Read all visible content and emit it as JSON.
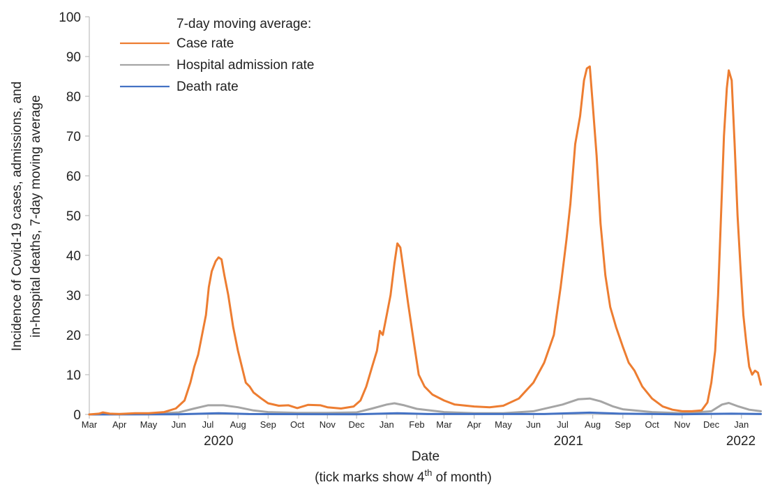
{
  "chart_data": {
    "type": "line",
    "ylabel": [
      "Incidence of Covid-19 cases, admissions, and",
      "in-hospital deaths, 7-day moving average"
    ],
    "xlabel": "Date",
    "xlabel_note_pre": "(tick marks show 4",
    "xlabel_note_sup": "th",
    "xlabel_note_post": " of month)",
    "ylim": [
      0,
      100
    ],
    "yticks": [
      0,
      10,
      20,
      30,
      40,
      50,
      60,
      70,
      80,
      90,
      100
    ],
    "xlim": [
      "2020-03-04",
      "2022-01-25"
    ],
    "month_ticks": [
      {
        "label": "Mar",
        "date": "2020-03-04"
      },
      {
        "label": "Apr",
        "date": "2020-04-04"
      },
      {
        "label": "May",
        "date": "2020-05-04"
      },
      {
        "label": "Jun",
        "date": "2020-06-04"
      },
      {
        "label": "Jul",
        "date": "2020-07-04"
      },
      {
        "label": "Aug",
        "date": "2020-08-04"
      },
      {
        "label": "Sep",
        "date": "2020-09-04"
      },
      {
        "label": "Oct",
        "date": "2020-10-04"
      },
      {
        "label": "Nov",
        "date": "2020-11-04"
      },
      {
        "label": "Dec",
        "date": "2020-12-04"
      },
      {
        "label": "Jan",
        "date": "2021-01-04"
      },
      {
        "label": "Feb",
        "date": "2021-02-04"
      },
      {
        "label": "Mar",
        "date": "2021-03-04"
      },
      {
        "label": "Apr",
        "date": "2021-04-04"
      },
      {
        "label": "May",
        "date": "2021-05-04"
      },
      {
        "label": "Jun",
        "date": "2021-06-04"
      },
      {
        "label": "Jul",
        "date": "2021-07-04"
      },
      {
        "label": "Aug",
        "date": "2021-08-04"
      },
      {
        "label": "Sep",
        "date": "2021-09-04"
      },
      {
        "label": "Oct",
        "date": "2021-10-04"
      },
      {
        "label": "Nov",
        "date": "2021-11-04"
      },
      {
        "label": "Dec",
        "date": "2021-12-04"
      },
      {
        "label": "Jan",
        "date": "2022-01-04"
      }
    ],
    "year_labels": [
      {
        "label": "2020",
        "date": "2020-07-15"
      },
      {
        "label": "2021",
        "date": "2021-07-10"
      },
      {
        "label": "2022",
        "date": "2022-01-10"
      }
    ],
    "legend": {
      "title": "7-day moving average:",
      "placement": "top-left"
    },
    "grid": false,
    "series": [
      {
        "name": "Case rate",
        "color": "#ED7D31",
        "points": [
          [
            "2020-03-04",
            0.0
          ],
          [
            "2020-03-14",
            0.2
          ],
          [
            "2020-03-18",
            0.5
          ],
          [
            "2020-03-25",
            0.2
          ],
          [
            "2020-04-04",
            0.1
          ],
          [
            "2020-04-20",
            0.3
          ],
          [
            "2020-05-04",
            0.3
          ],
          [
            "2020-05-20",
            0.6
          ],
          [
            "2020-06-01",
            1.5
          ],
          [
            "2020-06-10",
            3.5
          ],
          [
            "2020-06-16",
            8.0
          ],
          [
            "2020-06-20",
            12.0
          ],
          [
            "2020-06-24",
            15.0
          ],
          [
            "2020-06-28",
            20.0
          ],
          [
            "2020-07-02",
            25.0
          ],
          [
            "2020-07-05",
            32.0
          ],
          [
            "2020-07-08",
            36.0
          ],
          [
            "2020-07-12",
            38.5
          ],
          [
            "2020-07-15",
            39.5
          ],
          [
            "2020-07-18",
            39.0
          ],
          [
            "2020-07-21",
            35.0
          ],
          [
            "2020-07-25",
            30.0
          ],
          [
            "2020-07-30",
            22.0
          ],
          [
            "2020-08-04",
            16.0
          ],
          [
            "2020-08-08",
            12.0
          ],
          [
            "2020-08-12",
            8.0
          ],
          [
            "2020-08-16",
            7.0
          ],
          [
            "2020-08-20",
            5.5
          ],
          [
            "2020-08-28",
            4.0
          ],
          [
            "2020-09-04",
            2.8
          ],
          [
            "2020-09-15",
            2.2
          ],
          [
            "2020-09-25",
            2.3
          ],
          [
            "2020-10-04",
            1.6
          ],
          [
            "2020-10-15",
            2.4
          ],
          [
            "2020-10-28",
            2.3
          ],
          [
            "2020-11-04",
            1.8
          ],
          [
            "2020-11-18",
            1.5
          ],
          [
            "2020-12-01",
            2.0
          ],
          [
            "2020-12-08",
            3.5
          ],
          [
            "2020-12-14",
            7.0
          ],
          [
            "2020-12-20",
            12.0
          ],
          [
            "2020-12-25",
            16.0
          ],
          [
            "2020-12-28",
            21.0
          ],
          [
            "2020-12-31",
            20.0
          ],
          [
            "2021-01-04",
            25.0
          ],
          [
            "2021-01-08",
            30.0
          ],
          [
            "2021-01-12",
            38.0
          ],
          [
            "2021-01-15",
            43.0
          ],
          [
            "2021-01-18",
            42.0
          ],
          [
            "2021-01-22",
            35.0
          ],
          [
            "2021-01-26",
            28.0
          ],
          [
            "2021-02-01",
            18.0
          ],
          [
            "2021-02-06",
            10.0
          ],
          [
            "2021-02-12",
            7.0
          ],
          [
            "2021-02-20",
            5.0
          ],
          [
            "2021-03-04",
            3.5
          ],
          [
            "2021-03-15",
            2.5
          ],
          [
            "2021-04-04",
            2.0
          ],
          [
            "2021-04-20",
            1.8
          ],
          [
            "2021-05-04",
            2.2
          ],
          [
            "2021-05-20",
            4.0
          ],
          [
            "2021-06-04",
            8.0
          ],
          [
            "2021-06-15",
            13.0
          ],
          [
            "2021-06-25",
            20.0
          ],
          [
            "2021-07-02",
            32.0
          ],
          [
            "2021-07-08",
            44.0
          ],
          [
            "2021-07-12",
            53.0
          ],
          [
            "2021-07-17",
            68.0
          ],
          [
            "2021-07-22",
            75.0
          ],
          [
            "2021-07-26",
            84.0
          ],
          [
            "2021-07-29",
            87.0
          ],
          [
            "2021-08-01",
            87.5
          ],
          [
            "2021-08-04",
            78.0
          ],
          [
            "2021-08-08",
            65.0
          ],
          [
            "2021-08-12",
            48.0
          ],
          [
            "2021-08-17",
            35.0
          ],
          [
            "2021-08-22",
            27.0
          ],
          [
            "2021-08-28",
            22.0
          ],
          [
            "2021-09-04",
            17.0
          ],
          [
            "2021-09-10",
            13.0
          ],
          [
            "2021-09-16",
            11.0
          ],
          [
            "2021-09-24",
            7.0
          ],
          [
            "2021-10-04",
            4.0
          ],
          [
            "2021-10-15",
            2.0
          ],
          [
            "2021-10-25",
            1.2
          ],
          [
            "2021-11-04",
            0.8
          ],
          [
            "2021-11-14",
            0.8
          ],
          [
            "2021-11-24",
            1.0
          ],
          [
            "2021-11-30",
            3.0
          ],
          [
            "2021-12-04",
            8.0
          ],
          [
            "2021-12-08",
            16.0
          ],
          [
            "2021-12-11",
            30.0
          ],
          [
            "2021-12-14",
            50.0
          ],
          [
            "2021-12-17",
            70.0
          ],
          [
            "2021-12-20",
            82.0
          ],
          [
            "2021-12-22",
            86.5
          ],
          [
            "2021-12-25",
            84.0
          ],
          [
            "2021-12-28",
            68.0
          ],
          [
            "2021-12-31",
            50.0
          ],
          [
            "2022-01-03",
            37.0
          ],
          [
            "2022-01-06",
            25.0
          ],
          [
            "2022-01-09",
            18.0
          ],
          [
            "2022-01-12",
            12.0
          ],
          [
            "2022-01-15",
            10.0
          ],
          [
            "2022-01-18",
            11.0
          ],
          [
            "2022-01-21",
            10.5
          ],
          [
            "2022-01-24",
            7.5
          ]
        ]
      },
      {
        "name": "Hospital admission rate",
        "color": "#A5A5A5",
        "points": [
          [
            "2020-03-04",
            0.0
          ],
          [
            "2020-04-04",
            0.1
          ],
          [
            "2020-05-04",
            0.1
          ],
          [
            "2020-06-04",
            0.5
          ],
          [
            "2020-06-20",
            1.5
          ],
          [
            "2020-07-04",
            2.3
          ],
          [
            "2020-07-20",
            2.3
          ],
          [
            "2020-08-04",
            1.8
          ],
          [
            "2020-08-20",
            1.0
          ],
          [
            "2020-09-04",
            0.6
          ],
          [
            "2020-10-04",
            0.4
          ],
          [
            "2020-11-04",
            0.4
          ],
          [
            "2020-12-04",
            0.5
          ],
          [
            "2020-12-20",
            1.5
          ],
          [
            "2021-01-04",
            2.5
          ],
          [
            "2021-01-12",
            2.8
          ],
          [
            "2021-01-22",
            2.3
          ],
          [
            "2021-02-04",
            1.4
          ],
          [
            "2021-03-04",
            0.6
          ],
          [
            "2021-04-04",
            0.3
          ],
          [
            "2021-05-04",
            0.3
          ],
          [
            "2021-06-04",
            0.8
          ],
          [
            "2021-07-04",
            2.5
          ],
          [
            "2021-07-20",
            3.8
          ],
          [
            "2021-08-01",
            4.0
          ],
          [
            "2021-08-12",
            3.3
          ],
          [
            "2021-08-25",
            2.0
          ],
          [
            "2021-09-04",
            1.3
          ],
          [
            "2021-10-04",
            0.6
          ],
          [
            "2021-11-04",
            0.3
          ],
          [
            "2021-12-04",
            0.8
          ],
          [
            "2021-12-15",
            2.5
          ],
          [
            "2021-12-22",
            2.9
          ],
          [
            "2022-01-01",
            2.0
          ],
          [
            "2022-01-12",
            1.2
          ],
          [
            "2022-01-24",
            0.8
          ]
        ]
      },
      {
        "name": "Death rate",
        "color": "#4472C4",
        "points": [
          [
            "2020-03-04",
            0.0
          ],
          [
            "2020-06-04",
            0.05
          ],
          [
            "2020-07-15",
            0.3
          ],
          [
            "2020-08-15",
            0.1
          ],
          [
            "2020-12-04",
            0.05
          ],
          [
            "2021-01-15",
            0.3
          ],
          [
            "2021-02-15",
            0.1
          ],
          [
            "2021-06-15",
            0.1
          ],
          [
            "2021-08-01",
            0.45
          ],
          [
            "2021-09-01",
            0.2
          ],
          [
            "2021-11-01",
            0.05
          ],
          [
            "2021-12-25",
            0.2
          ],
          [
            "2022-01-24",
            0.1
          ]
        ]
      }
    ]
  }
}
